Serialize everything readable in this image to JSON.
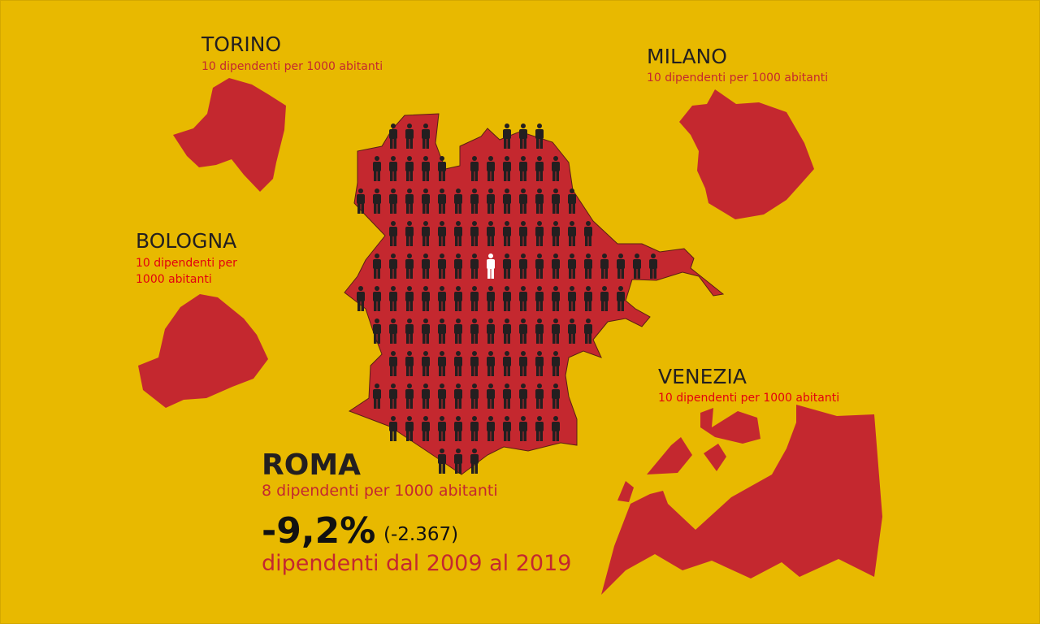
{
  "colors": {
    "background": "#e8b900",
    "map_fill": "#c4282f",
    "person": "#231f20",
    "person_highlight": "#ffffff"
  },
  "torino": {
    "name": "TORINO",
    "stat": "10 dipendenti per 1000 abitanti"
  },
  "milano": {
    "name": "MILANO",
    "stat": "10 dipendenti per 1000 abitanti"
  },
  "bologna": {
    "name": "BOLOGNA",
    "stat_line1": "10 dipendenti per",
    "stat_line2": "1000 abitanti"
  },
  "venezia": {
    "name": "VENEZIA",
    "stat": "10 dipendenti per 1000 abitanti"
  },
  "roma": {
    "name": "ROMA",
    "stat": "8 dipendenti per 1000 abitanti",
    "change_pct": "-9,2%",
    "change_abs": "(-2.367)",
    "period": "dipendenti dal 2009 al 2019"
  }
}
